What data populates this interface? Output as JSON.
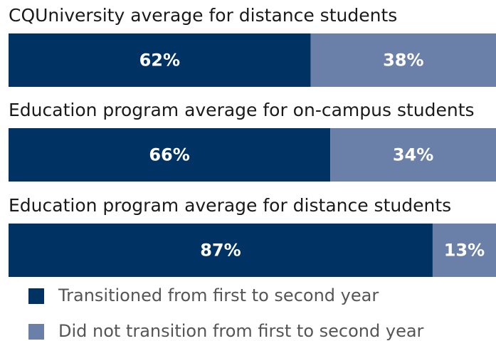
{
  "chart_data": {
    "type": "bar",
    "orientation": "horizontal",
    "stacked": true,
    "categories": [
      "CQUniversity average for distance students",
      "Education program average for on-campus students",
      "Education program average for distance students"
    ],
    "series": [
      {
        "name": "Transitioned from first to second year",
        "color": "#003263",
        "values": [
          62,
          66,
          87
        ],
        "value_labels": [
          "62%",
          "66%",
          "87%"
        ]
      },
      {
        "name": "Did not transition from first to second year",
        "color": "#6a80a9",
        "values": [
          38,
          34,
          13
        ],
        "value_labels": [
          "38%",
          "34%",
          "13%"
        ]
      }
    ]
  }
}
